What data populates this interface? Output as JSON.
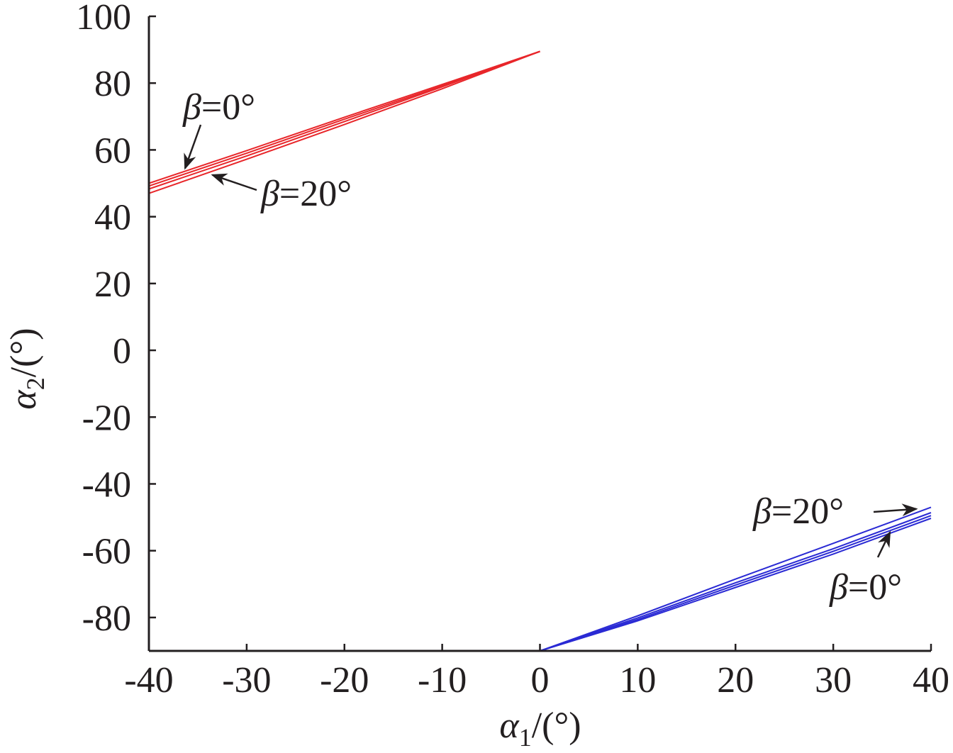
{
  "chart_data": {
    "type": "line",
    "title": "",
    "xlabel": {
      "symbol": "α",
      "sub": "1",
      "unit": "/(°)"
    },
    "ylabel": {
      "symbol": "α",
      "sub": "2",
      "unit": "/(°)"
    },
    "xlim": [
      -40,
      40
    ],
    "ylim": [
      -90,
      100
    ],
    "xticks": [
      -40,
      -30,
      -20,
      -10,
      0,
      10,
      20,
      30,
      40
    ],
    "yticks": [
      -80,
      -60,
      -40,
      -20,
      0,
      20,
      40,
      60,
      80,
      100
    ],
    "xtick_labels": [
      "-40",
      "-30",
      "-20",
      "-10",
      "0",
      "10",
      "20",
      "30",
      "40"
    ],
    "ytick_labels": [
      "-80",
      "-60",
      "-40",
      "-20",
      "0",
      "20",
      "40",
      "60",
      "80",
      "100"
    ],
    "grid": false,
    "legend": "none",
    "colors": {
      "upper": "#e8262a",
      "lower": "#2a2ad4",
      "axis": "#231f20"
    },
    "series": [
      {
        "group": "upper",
        "x": [
          -40,
          -30,
          -20,
          -10,
          0
        ],
        "y": [
          50.0,
          59.8,
          69.8,
          79.6,
          89.5
        ]
      },
      {
        "group": "upper",
        "x": [
          -40,
          -30,
          -20,
          -10,
          0
        ],
        "y": [
          49.2,
          59.0,
          69.2,
          79.2,
          89.5
        ]
      },
      {
        "group": "upper",
        "x": [
          -40,
          -30,
          -20,
          -10,
          0
        ],
        "y": [
          48.3,
          58.2,
          68.5,
          78.9,
          89.5
        ]
      },
      {
        "group": "upper",
        "x": [
          -40,
          -30,
          -20,
          -10,
          0
        ],
        "y": [
          47.0,
          57.2,
          67.6,
          78.3,
          89.5
        ]
      },
      {
        "group": "lower",
        "x": [
          0,
          10,
          20,
          30,
          40
        ],
        "y": [
          -90.0,
          -79.5,
          -68.5,
          -57.8,
          -47.0
        ]
      },
      {
        "group": "lower",
        "x": [
          0,
          10,
          20,
          30,
          40
        ],
        "y": [
          -90.0,
          -80.1,
          -69.6,
          -59.4,
          -48.6
        ]
      },
      {
        "group": "lower",
        "x": [
          0,
          10,
          20,
          30,
          40
        ],
        "y": [
          -90.0,
          -80.6,
          -70.3,
          -60.2,
          -49.5
        ]
      },
      {
        "group": "lower",
        "x": [
          0,
          10,
          20,
          30,
          40
        ],
        "y": [
          -90.0,
          -81.0,
          -71.0,
          -61.0,
          -50.3
        ]
      }
    ],
    "annotations": [
      {
        "symbol": "β",
        "text": "=0°",
        "tip": [
          -36.3,
          54.5
        ]
      },
      {
        "symbol": "β",
        "text": "=20°",
        "tip": [
          -33.5,
          52.5
        ]
      },
      {
        "symbol": "β",
        "text": "=20°",
        "tip": [
          38.5,
          -47.5
        ]
      },
      {
        "symbol": "β",
        "text": "=0°",
        "tip": [
          35.8,
          -54.5
        ]
      }
    ]
  }
}
